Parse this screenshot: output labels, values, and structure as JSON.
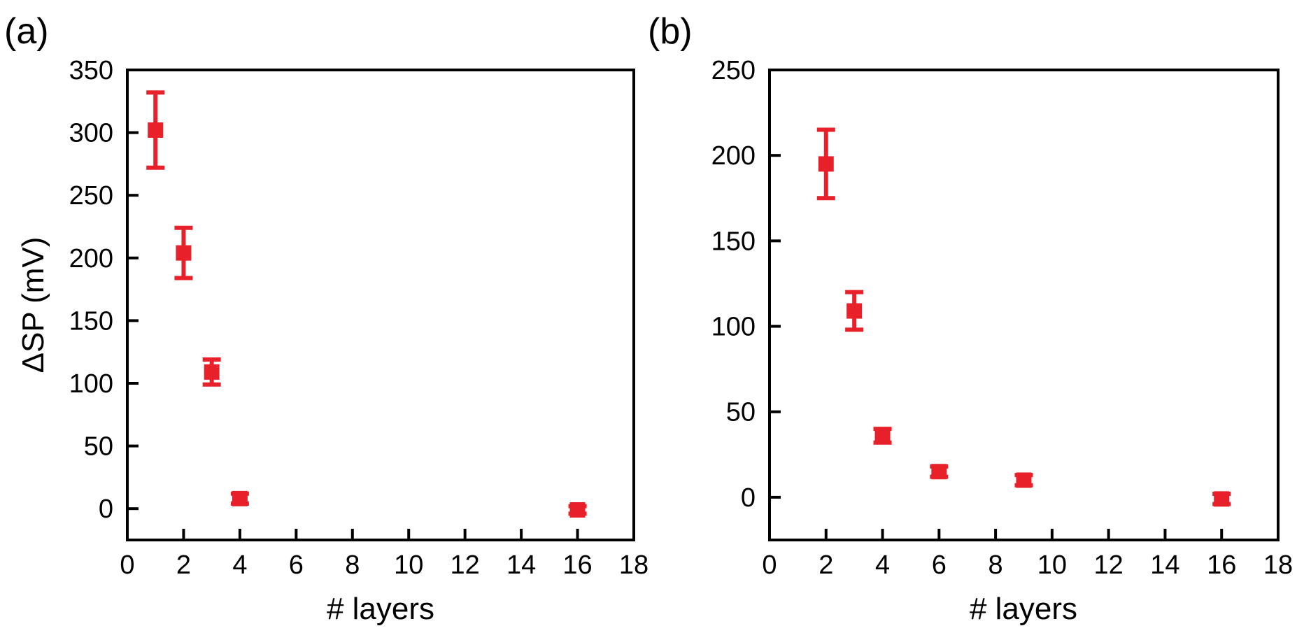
{
  "chart_data": [
    {
      "type": "scatter",
      "panel_label": "(a)",
      "title": "",
      "xlabel": "# layers",
      "ylabel": "ΔSP (mV)",
      "xlim": [
        0,
        18
      ],
      "ylim": [
        -25,
        350
      ],
      "xticks": [
        0,
        2,
        4,
        6,
        8,
        10,
        12,
        14,
        16,
        18
      ],
      "yticks": [
        0,
        50,
        100,
        150,
        200,
        250,
        300,
        350
      ],
      "grid": false,
      "legend": "none",
      "series": [
        {
          "color": "#e8202a",
          "points": [
            {
              "x": 1,
              "y": 302,
              "err": 30
            },
            {
              "x": 2,
              "y": 204,
              "err": 20
            },
            {
              "x": 3,
              "y": 109,
              "err": 10
            },
            {
              "x": 4,
              "y": 8,
              "err": 4
            },
            {
              "x": 16,
              "y": -1,
              "err": 3
            }
          ]
        }
      ]
    },
    {
      "type": "scatter",
      "panel_label": "(b)",
      "title": "",
      "xlabel": "# layers",
      "ylabel": "",
      "xlim": [
        0,
        18
      ],
      "ylim": [
        -25,
        250
      ],
      "xticks": [
        0,
        2,
        4,
        6,
        8,
        10,
        12,
        14,
        16,
        18
      ],
      "yticks": [
        0,
        50,
        100,
        150,
        200,
        250
      ],
      "grid": false,
      "legend": "none",
      "series": [
        {
          "color": "#e8202a",
          "points": [
            {
              "x": 2,
              "y": 195,
              "err": 20
            },
            {
              "x": 3,
              "y": 109,
              "err": 11
            },
            {
              "x": 4,
              "y": 36,
              "err": 4
            },
            {
              "x": 6,
              "y": 15,
              "err": 3
            },
            {
              "x": 9,
              "y": 10,
              "err": 3
            },
            {
              "x": 16,
              "y": -1,
              "err": 3
            }
          ]
        }
      ]
    }
  ]
}
